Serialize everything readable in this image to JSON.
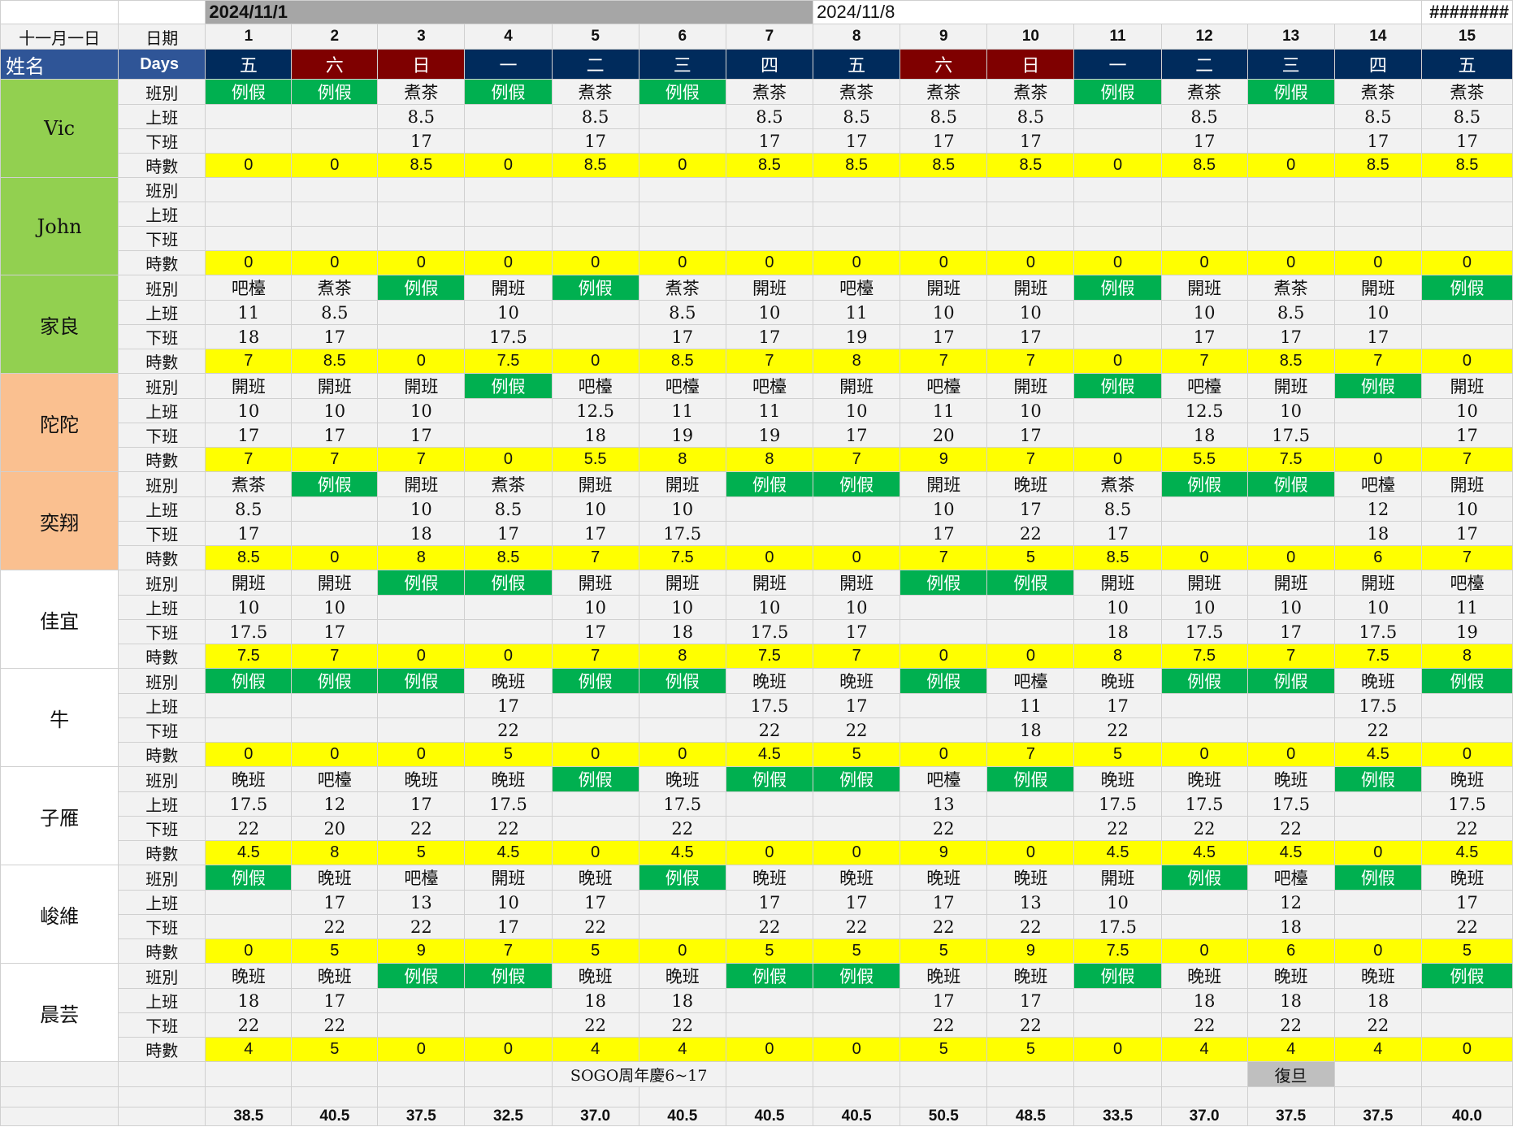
{
  "top": {
    "date1": "2024/11/1",
    "date2": "2024/11/8",
    "hash": "########"
  },
  "header": {
    "month_label": "十一月一日",
    "date_label": "日期",
    "name_label": "姓名",
    "days_label": "Days",
    "day_numbers": [
      "1",
      "2",
      "3",
      "4",
      "5",
      "6",
      "7",
      "8",
      "9",
      "10",
      "11",
      "12",
      "13",
      "14",
      "15"
    ],
    "weekdays": [
      "五",
      "六",
      "日",
      "一",
      "二",
      "三",
      "四",
      "五",
      "六",
      "日",
      "一",
      "二",
      "三",
      "四",
      "五"
    ],
    "weekend_flags": [
      false,
      true,
      true,
      false,
      false,
      false,
      false,
      false,
      true,
      true,
      false,
      false,
      false,
      false,
      false
    ]
  },
  "row_labels": {
    "shift": "班別",
    "start": "上班",
    "end": "下班",
    "hours": "時數"
  },
  "leave_label": "例假",
  "colors": {
    "leave": "#00b050",
    "hours": "#ffff00",
    "weekday": "#002b5c",
    "weekend": "#7f0000",
    "header": "#2f5597"
  },
  "employees": [
    {
      "name": "Vic",
      "color": "green",
      "shift": [
        "例假",
        "例假",
        "煮茶",
        "例假",
        "煮茶",
        "例假",
        "煮茶",
        "煮茶",
        "煮茶",
        "煮茶",
        "例假",
        "煮茶",
        "例假",
        "煮茶",
        "煮茶"
      ],
      "start": [
        "",
        "",
        "8.5",
        "",
        "8.5",
        "",
        "8.5",
        "8.5",
        "8.5",
        "8.5",
        "",
        "8.5",
        "",
        "8.5",
        "8.5"
      ],
      "end": [
        "",
        "",
        "17",
        "",
        "17",
        "",
        "17",
        "17",
        "17",
        "17",
        "",
        "17",
        "",
        "17",
        "17"
      ],
      "hours": [
        "0",
        "0",
        "8.5",
        "0",
        "8.5",
        "0",
        "8.5",
        "8.5",
        "8.5",
        "8.5",
        "0",
        "8.5",
        "0",
        "8.5",
        "8.5"
      ]
    },
    {
      "name": "John",
      "color": "green",
      "shift": [
        "",
        "",
        "",
        "",
        "",
        "",
        "",
        "",
        "",
        "",
        "",
        "",
        "",
        "",
        ""
      ],
      "start": [
        "",
        "",
        "",
        "",
        "",
        "",
        "",
        "",
        "",
        "",
        "",
        "",
        "",
        "",
        ""
      ],
      "end": [
        "",
        "",
        "",
        "",
        "",
        "",
        "",
        "",
        "",
        "",
        "",
        "",
        "",
        "",
        ""
      ],
      "hours": [
        "0",
        "0",
        "0",
        "0",
        "0",
        "0",
        "0",
        "0",
        "0",
        "0",
        "0",
        "0",
        "0",
        "0",
        "0"
      ]
    },
    {
      "name": "家良",
      "color": "green",
      "shift": [
        "吧檯",
        "煮茶",
        "例假",
        "開班",
        "例假",
        "煮茶",
        "開班",
        "吧檯",
        "開班",
        "開班",
        "例假",
        "開班",
        "煮茶",
        "開班",
        "例假"
      ],
      "start": [
        "11",
        "8.5",
        "",
        "10",
        "",
        "8.5",
        "10",
        "11",
        "10",
        "10",
        "",
        "10",
        "8.5",
        "10",
        ""
      ],
      "end": [
        "18",
        "17",
        "",
        "17.5",
        "",
        "17",
        "17",
        "19",
        "17",
        "17",
        "",
        "17",
        "17",
        "17",
        ""
      ],
      "hours": [
        "7",
        "8.5",
        "0",
        "7.5",
        "0",
        "8.5",
        "7",
        "8",
        "7",
        "7",
        "0",
        "7",
        "8.5",
        "7",
        "0"
      ]
    },
    {
      "name": "陀陀",
      "color": "peach",
      "shift": [
        "開班",
        "開班",
        "開班",
        "例假",
        "吧檯",
        "吧檯",
        "吧檯",
        "開班",
        "吧檯",
        "開班",
        "例假",
        "吧檯",
        "開班",
        "例假",
        "開班"
      ],
      "start": [
        "10",
        "10",
        "10",
        "",
        "12.5",
        "11",
        "11",
        "10",
        "11",
        "10",
        "",
        "12.5",
        "10",
        "",
        "10"
      ],
      "end": [
        "17",
        "17",
        "17",
        "",
        "18",
        "19",
        "19",
        "17",
        "20",
        "17",
        "",
        "18",
        "17.5",
        "",
        "17"
      ],
      "hours": [
        "7",
        "7",
        "7",
        "0",
        "5.5",
        "8",
        "8",
        "7",
        "9",
        "7",
        "0",
        "5.5",
        "7.5",
        "0",
        "7"
      ]
    },
    {
      "name": "奕翔",
      "color": "peach",
      "shift": [
        "煮茶",
        "例假",
        "開班",
        "煮茶",
        "開班",
        "開班",
        "例假",
        "例假",
        "開班",
        "晚班",
        "煮茶",
        "例假",
        "例假",
        "吧檯",
        "開班"
      ],
      "start": [
        "8.5",
        "",
        "10",
        "8.5",
        "10",
        "10",
        "",
        "",
        "10",
        "17",
        "8.5",
        "",
        "",
        "12",
        "10"
      ],
      "end": [
        "17",
        "",
        "18",
        "17",
        "17",
        "17.5",
        "",
        "",
        "17",
        "22",
        "17",
        "",
        "",
        "18",
        "17"
      ],
      "hours": [
        "8.5",
        "0",
        "8",
        "8.5",
        "7",
        "7.5",
        "0",
        "0",
        "7",
        "5",
        "8.5",
        "0",
        "0",
        "6",
        "7"
      ]
    },
    {
      "name": "佳宜",
      "color": "white",
      "shift": [
        "開班",
        "開班",
        "例假",
        "例假",
        "開班",
        "開班",
        "開班",
        "開班",
        "例假",
        "例假",
        "開班",
        "開班",
        "開班",
        "開班",
        "吧檯"
      ],
      "start": [
        "10",
        "10",
        "",
        "",
        "10",
        "10",
        "10",
        "10",
        "",
        "",
        "10",
        "10",
        "10",
        "10",
        "11"
      ],
      "end": [
        "17.5",
        "17",
        "",
        "",
        "17",
        "18",
        "17.5",
        "17",
        "",
        "",
        "18",
        "17.5",
        "17",
        "17.5",
        "19"
      ],
      "hours": [
        "7.5",
        "7",
        "0",
        "0",
        "7",
        "8",
        "7.5",
        "7",
        "0",
        "0",
        "8",
        "7.5",
        "7",
        "7.5",
        "8"
      ]
    },
    {
      "name": "牛",
      "color": "white",
      "shift": [
        "例假",
        "例假",
        "例假",
        "晚班",
        "例假",
        "例假",
        "晚班",
        "晚班",
        "例假",
        "吧檯",
        "晚班",
        "例假",
        "例假",
        "晚班",
        "例假"
      ],
      "start": [
        "",
        "",
        "",
        "17",
        "",
        "",
        "17.5",
        "17",
        "",
        "11",
        "17",
        "",
        "",
        "17.5",
        ""
      ],
      "end": [
        "",
        "",
        "",
        "22",
        "",
        "",
        "22",
        "22",
        "",
        "18",
        "22",
        "",
        "",
        "22",
        ""
      ],
      "hours": [
        "0",
        "0",
        "0",
        "5",
        "0",
        "0",
        "4.5",
        "5",
        "0",
        "7",
        "5",
        "0",
        "0",
        "4.5",
        "0"
      ]
    },
    {
      "name": "子雁",
      "color": "white",
      "shift": [
        "晚班",
        "吧檯",
        "晚班",
        "晚班",
        "例假",
        "晚班",
        "例假",
        "例假",
        "吧檯",
        "例假",
        "晚班",
        "晚班",
        "晚班",
        "例假",
        "晚班"
      ],
      "start": [
        "17.5",
        "12",
        "17",
        "17.5",
        "",
        "17.5",
        "",
        "",
        "13",
        "",
        "17.5",
        "17.5",
        "17.5",
        "",
        "17.5"
      ],
      "end": [
        "22",
        "20",
        "22",
        "22",
        "",
        "22",
        "",
        "",
        "22",
        "",
        "22",
        "22",
        "22",
        "",
        "22"
      ],
      "hours": [
        "4.5",
        "8",
        "5",
        "4.5",
        "0",
        "4.5",
        "0",
        "0",
        "9",
        "0",
        "4.5",
        "4.5",
        "4.5",
        "0",
        "4.5"
      ]
    },
    {
      "name": "峻維",
      "color": "white",
      "shift": [
        "例假",
        "晚班",
        "吧檯",
        "開班",
        "晚班",
        "例假",
        "晚班",
        "晚班",
        "晚班",
        "晚班",
        "開班",
        "例假",
        "吧檯",
        "例假",
        "晚班"
      ],
      "start": [
        "",
        "17",
        "13",
        "10",
        "17",
        "",
        "17",
        "17",
        "17",
        "13",
        "10",
        "",
        "12",
        "",
        "17"
      ],
      "end": [
        "",
        "22",
        "22",
        "17",
        "22",
        "",
        "22",
        "22",
        "22",
        "22",
        "17.5",
        "",
        "18",
        "",
        "22"
      ],
      "hours": [
        "0",
        "5",
        "9",
        "7",
        "5",
        "0",
        "5",
        "5",
        "5",
        "9",
        "7.5",
        "0",
        "6",
        "0",
        "5"
      ]
    },
    {
      "name": "晨芸",
      "color": "white",
      "shift": [
        "晚班",
        "晚班",
        "例假",
        "例假",
        "晚班",
        "晚班",
        "例假",
        "例假",
        "晚班",
        "晚班",
        "例假",
        "晚班",
        "晚班",
        "晚班",
        "例假"
      ],
      "start": [
        "18",
        "17",
        "",
        "",
        "18",
        "18",
        "",
        "",
        "17",
        "17",
        "",
        "18",
        "18",
        "18",
        ""
      ],
      "end": [
        "22",
        "22",
        "",
        "",
        "22",
        "22",
        "",
        "",
        "22",
        "22",
        "",
        "22",
        "22",
        "22",
        ""
      ],
      "hours": [
        "4",
        "5",
        "0",
        "0",
        "4",
        "4",
        "0",
        "0",
        "5",
        "5",
        "0",
        "4",
        "4",
        "4",
        "0"
      ]
    }
  ],
  "notes": {
    "event": "SOGO周年慶6~17",
    "holiday": "復旦"
  },
  "totals": [
    "38.5",
    "40.5",
    "37.5",
    "32.5",
    "37.0",
    "40.5",
    "40.5",
    "40.5",
    "50.5",
    "48.5",
    "33.5",
    "37.0",
    "37.5",
    "37.5",
    "40.0"
  ]
}
